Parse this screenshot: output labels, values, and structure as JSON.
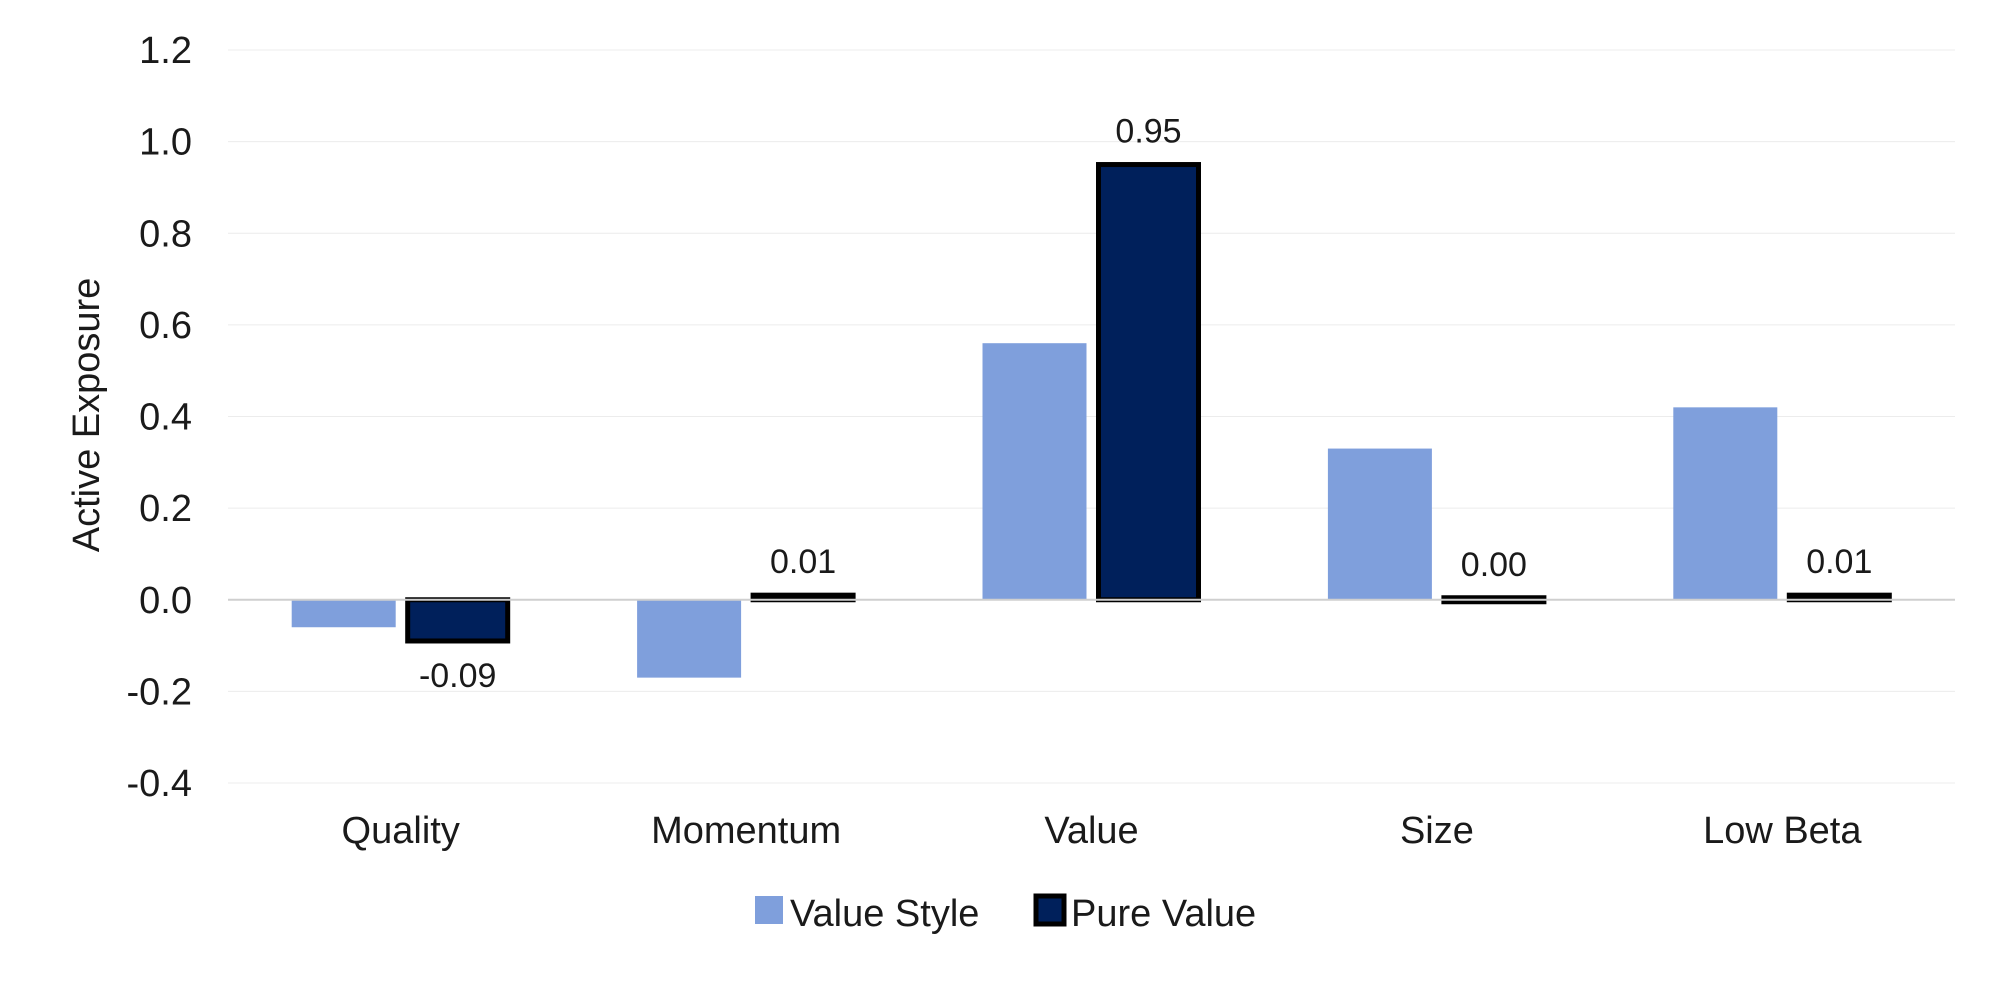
{
  "chart_data": {
    "type": "bar",
    "categories": [
      "Quality",
      "Momentum",
      "Value",
      "Size",
      "Low Beta"
    ],
    "series": [
      {
        "name": "Value Style",
        "values": [
          -0.06,
          -0.17,
          0.56,
          0.33,
          0.42
        ],
        "color": "#7f9fdc",
        "border": "none"
      },
      {
        "name": "Pure Value",
        "values": [
          -0.09,
          0.01,
          0.95,
          0.0,
          0.01
        ],
        "data_labels": [
          "-0.09",
          "0.01",
          "0.95",
          "0.00",
          "0.01"
        ],
        "color": "#00205b",
        "border": "#000000"
      }
    ],
    "ylabel": "Active Exposure",
    "ylim": [
      -0.4,
      1.2
    ],
    "yticks": [
      "1.2",
      "1.0",
      "0.8",
      "0.6",
      "0.4",
      "0.2",
      "0.0",
      "-0.2",
      "-0.4"
    ],
    "ytick_values": [
      1.2,
      1.0,
      0.8,
      0.6,
      0.4,
      0.2,
      0.0,
      -0.2,
      -0.4
    ],
    "grid": true,
    "legend_position": "bottom"
  }
}
